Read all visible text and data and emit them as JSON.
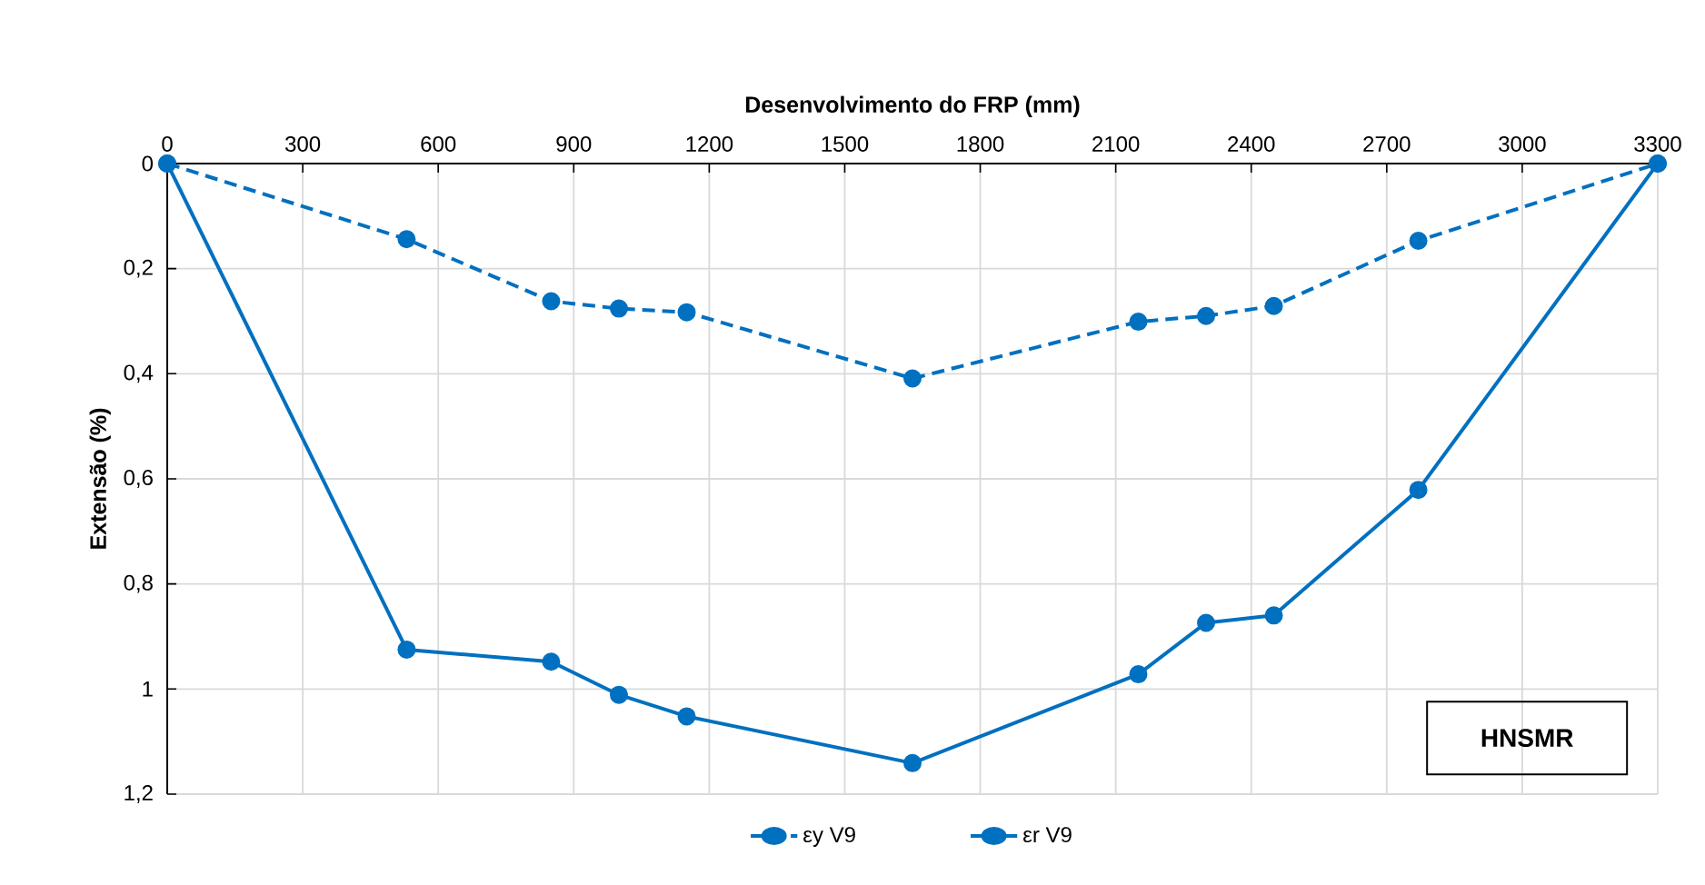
{
  "chart_data": {
    "type": "line",
    "xlabel": "Desenvolvimento do FRP (mm)",
    "ylabel": "Extensão (%)",
    "x": [
      0,
      530,
      850,
      1000,
      1150,
      1650,
      2150,
      2300,
      2450,
      2770,
      3300
    ],
    "series": [
      {
        "name": "εy V9",
        "color": "#0070c0",
        "line_style": "dashed",
        "values": [
          0,
          0.144,
          0.262,
          0.276,
          0.283,
          0.409,
          0.301,
          0.29,
          0.271,
          0.147,
          0
        ]
      },
      {
        "name": "εr V9",
        "color": "#0070c0",
        "line_style": "solid",
        "values": [
          0,
          0.925,
          0.948,
          1.011,
          1.052,
          1.141,
          0.972,
          0.874,
          0.86,
          0.621,
          0
        ]
      }
    ],
    "xlim": [
      0,
      3300
    ],
    "xticks": [
      0,
      300,
      600,
      900,
      1200,
      1500,
      1800,
      2100,
      2400,
      2700,
      3000,
      3300
    ],
    "ylim": [
      1.2,
      0
    ],
    "yticks": [
      0,
      {
        "value": 0.2,
        "label": "0,2"
      },
      {
        "value": 0.4,
        "label": "0,4"
      },
      {
        "value": 0.6,
        "label": "0,6"
      },
      {
        "value": 0.8,
        "label": "0,8"
      },
      1,
      {
        "value": 1.2,
        "label": "1,2"
      }
    ],
    "annotations": [
      "HNSMR"
    ],
    "grid": true,
    "legend": "bottom",
    "marker": "circle"
  }
}
